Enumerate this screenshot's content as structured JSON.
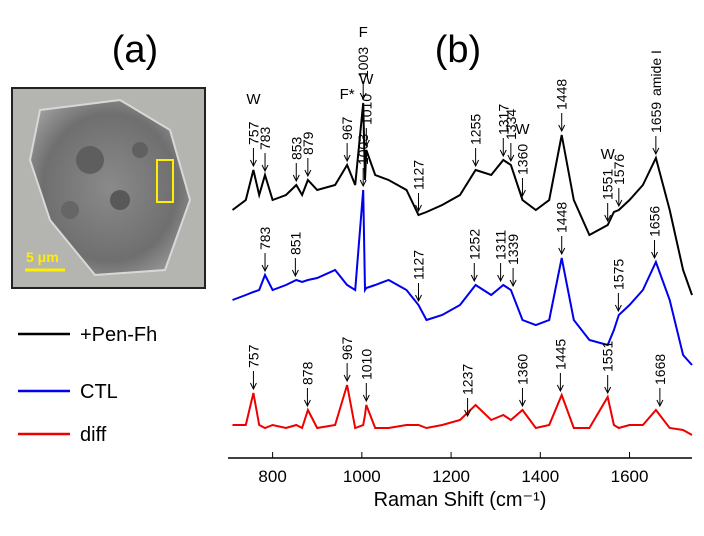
{
  "panel_a": {
    "label": "(a)",
    "scale_bar": "5 μm"
  },
  "chart_data": {
    "type": "line",
    "panel_label": "(b)",
    "x_label": "Raman Shift (cm⁻¹)",
    "x": [
      710,
      740,
      757,
      770,
      783,
      800,
      830,
      853,
      866,
      879,
      900,
      940,
      967,
      985,
      1003,
      1007,
      1010,
      1030,
      1060,
      1100,
      1127,
      1145,
      1180,
      1220,
      1255,
      1290,
      1317,
      1334,
      1360,
      1390,
      1420,
      1448,
      1475,
      1510,
      1551,
      1565,
      1576,
      1600,
      1630,
      1659,
      1690,
      1720,
      1740
    ],
    "xlim": [
      700,
      1740
    ],
    "xticks": [
      800,
      1000,
      1200,
      1400,
      1600
    ],
    "ylim": [
      0,
      388
    ],
    "series": [
      {
        "name": "+Pen-Fh",
        "color": "#000000",
        "values": [
          248,
          258,
          288,
          263,
          283,
          258,
          263,
          273,
          263,
          278,
          268,
          273,
          293,
          273,
          355,
          278,
          308,
          283,
          278,
          268,
          243,
          246,
          253,
          263,
          288,
          283,
          298,
          293,
          258,
          248,
          258,
          323,
          258,
          223,
          233,
          246,
          248,
          258,
          273,
          300,
          248,
          188,
          163
        ],
        "peaks": [
          757,
          783,
          853,
          879,
          967,
          1003,
          1010,
          1127,
          1255,
          1317,
          1334,
          1360,
          1448,
          1551,
          1576,
          1659
        ],
        "peak_tags": [
          "W",
          null,
          null,
          null,
          "F*",
          "F",
          "W",
          null,
          null,
          null,
          null,
          "W",
          null,
          "W",
          null,
          "amide I"
        ]
      },
      {
        "name": "CTL",
        "color": "#0000ee",
        "values": [
          158,
          163,
          166,
          168,
          183,
          168,
          173,
          178,
          176,
          178,
          180,
          188,
          173,
          168,
          268,
          168,
          170,
          173,
          178,
          168,
          153,
          138,
          143,
          153,
          173,
          163,
          173,
          168,
          138,
          133,
          138,
          200,
          138,
          118,
          113,
          128,
          143,
          153,
          168,
          196,
          158,
          103,
          93
        ],
        "peaks": [
          783,
          851,
          1003,
          1127,
          1252,
          1311,
          1339,
          1448,
          1575,
          1656
        ]
      },
      {
        "name": "diff",
        "color": "#ee0000",
        "values": [
          33,
          33,
          65,
          33,
          30,
          33,
          30,
          33,
          30,
          48,
          30,
          33,
          73,
          30,
          33,
          43,
          53,
          30,
          30,
          33,
          33,
          30,
          33,
          38,
          53,
          38,
          43,
          38,
          48,
          30,
          33,
          63,
          30,
          30,
          61,
          33,
          30,
          33,
          33,
          48,
          30,
          28,
          23
        ],
        "peaks": [
          757,
          878,
          967,
          1010,
          1237,
          1360,
          1445,
          1551,
          1668
        ]
      }
    ]
  }
}
